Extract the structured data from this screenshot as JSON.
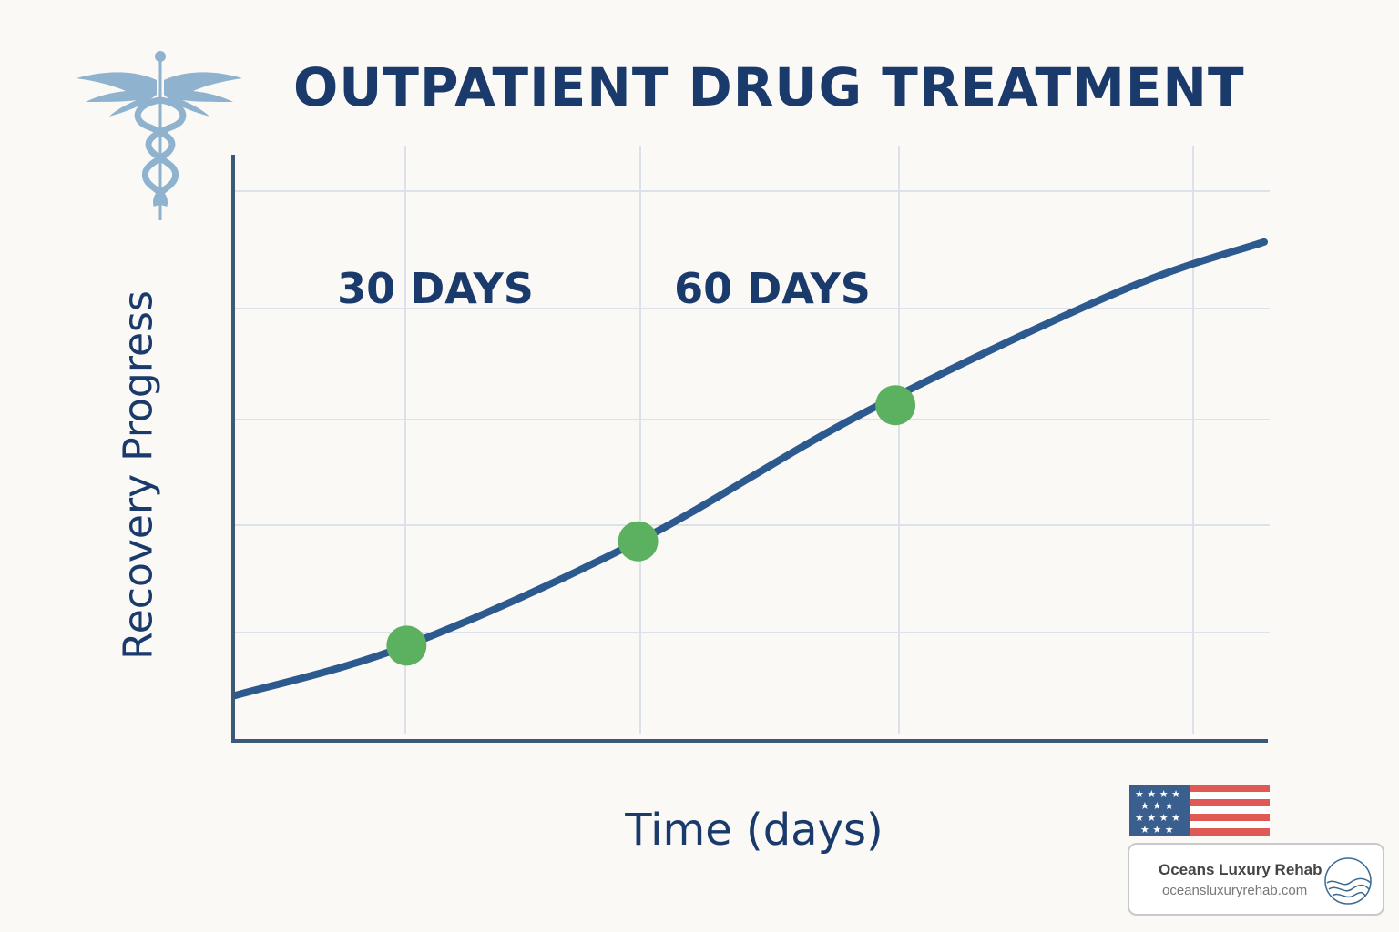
{
  "title": "OUTPATIENT DRUG TREATMENT",
  "chart_data": {
    "type": "line",
    "xlabel": "Time (days)",
    "ylabel": "Recovery Progress",
    "annotations": [
      "30 DAYS",
      "60 DAYS"
    ],
    "grid": true,
    "series": [
      {
        "x": [
          0,
          20,
          47,
          73,
          103,
          120
        ],
        "y": [
          0.5,
          1.05,
          2.2,
          3.6,
          4.95,
          5.5
        ]
      }
    ],
    "markers": [
      {
        "x": 20,
        "y": 1.05
      },
      {
        "x": 47,
        "y": 2.2
      },
      {
        "x": 77,
        "y": 3.7
      }
    ],
    "xlim": [
      0,
      120
    ],
    "ylim": [
      0,
      6
    ],
    "colors": {
      "line": "#2d5a8e",
      "marker": "#5cb160",
      "axis": "#3a5a78",
      "grid": "#dde2ea",
      "text": "#1a3a6b"
    }
  },
  "brand": {
    "name": "Oceans Luxury Rehab",
    "url": "oceansluxuryrehab.com"
  },
  "icons": [
    "caduceus-icon",
    "us-flag-icon",
    "wave-globe-icon"
  ]
}
